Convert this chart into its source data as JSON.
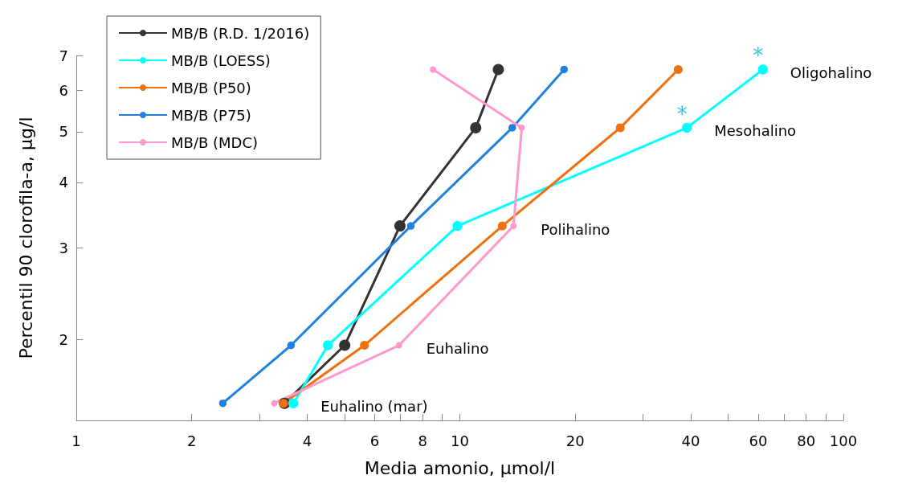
{
  "chart_data": {
    "type": "line",
    "xlabel": "Media amonio, µmol/l",
    "ylabel": "Percentil 90 clorofila-a, µg/l",
    "log": "xy",
    "xlim": [
      1,
      100
    ],
    "ylim": [
      1.4,
      7
    ],
    "xticks": [
      1,
      2,
      {
        "value": 3,
        "label": null
      },
      4,
      {
        "value": 5,
        "label": null
      },
      6,
      {
        "value": 7,
        "label": null
      },
      8,
      {
        "value": 9,
        "label": null
      },
      10,
      20,
      {
        "value": 30,
        "label": null
      },
      40,
      {
        "value": 50,
        "label": null
      },
      60,
      {
        "value": 70,
        "label": null
      },
      80,
      {
        "value": 90,
        "label": null
      },
      100
    ],
    "yticks": [
      2,
      3,
      4,
      5,
      6,
      7
    ],
    "grid": false,
    "legend": "top left",
    "marker": "circle",
    "line_style": "solid",
    "series": [
      {
        "name": "MB/B (R.D. 1/2016)",
        "color": "#333333",
        "x": [
          3.49,
          5.01,
          6.98,
          11.0,
          12.6
        ],
        "values": [
          1.51,
          1.95,
          3.3,
          5.09,
          6.58
        ]
      },
      {
        "name": "MB/B (LOESS)",
        "color": "#00ffff",
        "x": [
          3.68,
          4.53,
          9.86,
          39.1,
          61.7
        ],
        "values": [
          1.51,
          1.95,
          3.3,
          5.09,
          6.58
        ]
      },
      {
        "name": "MB/B (P50)",
        "color": "#f07010",
        "x": [
          3.47,
          5.64,
          12.9,
          26.2,
          37.1
        ],
        "values": [
          1.51,
          1.95,
          3.3,
          5.09,
          6.58
        ]
      },
      {
        "name": "MB/B (P75)",
        "color": "#2080e0",
        "x": [
          2.41,
          3.63,
          7.45,
          13.7,
          18.7
        ],
        "values": [
          1.51,
          1.95,
          3.3,
          5.09,
          6.58
        ]
      },
      {
        "name": "MB/B (MDC)",
        "color": "#ff99cc",
        "x": [
          3.28,
          6.94,
          13.8,
          14.5,
          8.51
        ],
        "values": [
          1.51,
          1.95,
          3.3,
          5.09,
          6.58
        ]
      }
    ],
    "annotations": [
      {
        "text": "Oligohalino",
        "x": 61.7,
        "y": 6.58
      },
      {
        "text": "Mesohalino",
        "x": 39.1,
        "y": 5.09
      },
      {
        "text": "Polihalino",
        "x": 13.8,
        "y": 3.3
      },
      {
        "text": "Euhalino",
        "x": 6.94,
        "y": 1.95
      },
      {
        "text": "Euhalino (mar)",
        "x": 3.68,
        "y": 1.51
      },
      {
        "text": "*",
        "x": 39.1,
        "y": 5.09
      },
      {
        "text": "*",
        "x": 61.7,
        "y": 6.58
      }
    ]
  }
}
